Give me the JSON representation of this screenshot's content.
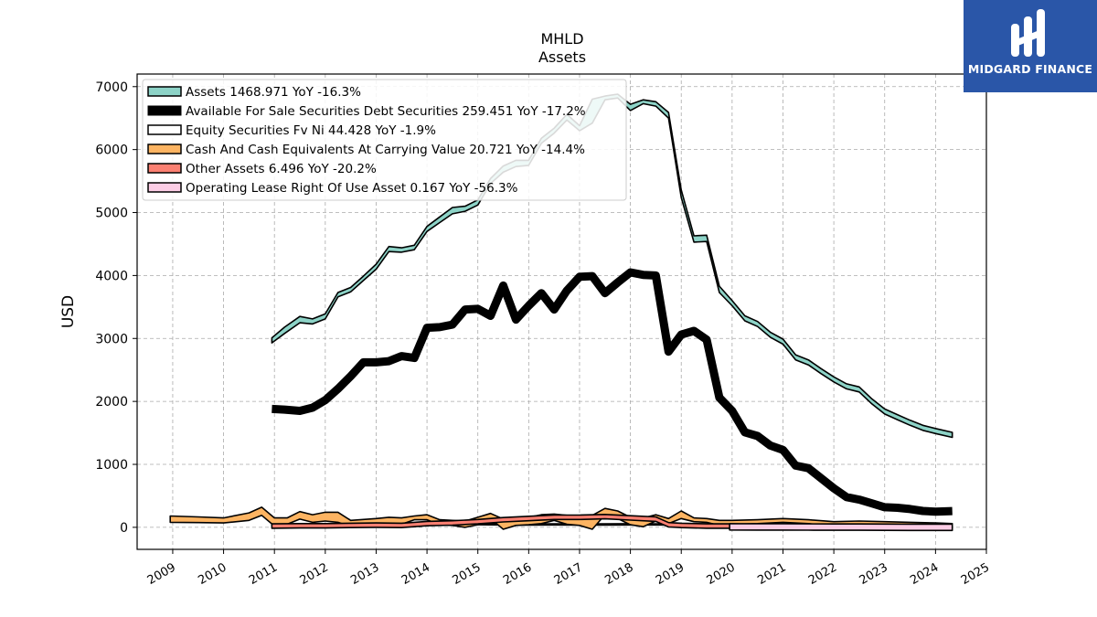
{
  "logo": {
    "text": "MIDGARD FINANCE"
  },
  "colors": {
    "assets": "#8dd3c7",
    "afs": "#000000",
    "equity": "#ffffff",
    "cash": "#fdb462",
    "other": "#fb8072",
    "lease": "#fccde5",
    "logo_bg": "#2a56a8"
  },
  "chart_data": {
    "type": "area",
    "title": "MHLD",
    "subtitle": "Assets",
    "ylabel": "USD",
    "xlabel": "",
    "xlim": [
      2008.3,
      2025.0
    ],
    "ylim": [
      -350,
      7200
    ],
    "grid": true,
    "legend_position": "top-left",
    "yticks": [
      0,
      1000,
      2000,
      3000,
      4000,
      5000,
      6000,
      7000
    ],
    "xticks": [
      2009,
      2010,
      2011,
      2012,
      2013,
      2014,
      2015,
      2016,
      2017,
      2018,
      2019,
      2020,
      2021,
      2022,
      2023,
      2024,
      2025
    ],
    "series": [
      {
        "key": "assets",
        "legend": "Assets  1468.971 YoY -16.3%",
        "style": "band",
        "x": [
          2010.95,
          2011.2,
          2011.5,
          2011.75,
          2012.0,
          2012.25,
          2012.5,
          2012.75,
          2013.0,
          2013.25,
          2013.5,
          2013.75,
          2014.0,
          2014.25,
          2014.5,
          2014.75,
          2015.0,
          2015.25,
          2015.5,
          2015.75,
          2016.0,
          2016.25,
          2016.5,
          2016.75,
          2017.0,
          2017.25,
          2017.5,
          2017.75,
          2018.0,
          2018.25,
          2018.5,
          2018.75,
          2019.0,
          2019.25,
          2019.5,
          2019.75,
          2020.0,
          2020.25,
          2020.5,
          2020.75,
          2021.0,
          2021.25,
          2021.5,
          2021.75,
          2022.0,
          2022.25,
          2022.5,
          2022.75,
          2023.0,
          2023.25,
          2023.5,
          2023.75,
          2024.0,
          2024.33
        ],
        "y": [
          2970,
          3120,
          3300,
          3270,
          3350,
          3700,
          3780,
          3960,
          4140,
          4420,
          4410,
          4450,
          4740,
          4880,
          5030,
          5060,
          5160,
          5500,
          5690,
          5780,
          5790,
          6140,
          6300,
          6520,
          6340,
          6600,
          6820,
          6860,
          6660,
          6760,
          6720,
          6540,
          5300,
          4580,
          4590,
          3780,
          3560,
          3320,
          3230,
          3060,
          2950,
          2700,
          2620,
          2480,
          2350,
          2240,
          2190,
          2000,
          1840,
          1750,
          1660,
          1580,
          1530,
          1469
        ],
        "upper": [
          3010,
          3180,
          3350,
          3310,
          3390,
          3730,
          3810,
          3990,
          4180,
          4460,
          4440,
          4480,
          4780,
          4930,
          5080,
          5100,
          5200,
          5540,
          5740,
          5830,
          5830,
          6180,
          6340,
          6560,
          6380,
          6800,
          6850,
          6880,
          6720,
          6790,
          6760,
          6590,
          5360,
          4630,
          4640,
          3830,
          3600,
          3360,
          3270,
          3100,
          2990,
          2740,
          2660,
          2520,
          2390,
          2280,
          2230,
          2040,
          1880,
          1790,
          1700,
          1620,
          1570,
          1509
        ],
        "lower": [
          2930,
          3080,
          3250,
          3230,
          3310,
          3660,
          3740,
          3920,
          4100,
          4380,
          4370,
          4410,
          4700,
          4840,
          4980,
          5020,
          5120,
          5460,
          5640,
          5730,
          5750,
          6100,
          6260,
          6470,
          6300,
          6420,
          6790,
          6820,
          6620,
          6730,
          6690,
          6500,
          5240,
          4530,
          4540,
          3730,
          3520,
          3280,
          3190,
          3020,
          2910,
          2660,
          2580,
          2440,
          2310,
          2200,
          2150,
          1960,
          1800,
          1710,
          1620,
          1540,
          1490,
          1429
        ]
      },
      {
        "key": "afs",
        "legend": "Available For Sale Securities Debt Securities  259.451 YoY -17.2%",
        "style": "thick",
        "x": [
          2010.95,
          2011.2,
          2011.5,
          2011.75,
          2012.0,
          2012.25,
          2012.5,
          2012.75,
          2013.0,
          2013.25,
          2013.5,
          2013.75,
          2014.0,
          2014.25,
          2014.5,
          2014.75,
          2015.0,
          2015.25,
          2015.5,
          2015.75,
          2016.0,
          2016.25,
          2016.5,
          2016.75,
          2017.0,
          2017.25,
          2017.5,
          2017.75,
          2018.0,
          2018.25,
          2018.5,
          2018.75,
          2019.0,
          2019.25,
          2019.5,
          2019.75,
          2020.0,
          2020.25,
          2020.5,
          2020.75,
          2021.0,
          2021.25,
          2021.5,
          2021.75,
          2022.0,
          2022.25,
          2022.5,
          2022.75,
          2023.0,
          2023.25,
          2023.5,
          2023.75,
          2024.0,
          2024.33
        ],
        "y": [
          1880,
          1870,
          1850,
          1900,
          2020,
          2200,
          2400,
          2620,
          2620,
          2640,
          2720,
          2690,
          3170,
          3180,
          3220,
          3460,
          3470,
          3360,
          3840,
          3300,
          3520,
          3720,
          3460,
          3760,
          3980,
          3990,
          3720,
          3890,
          4050,
          4010,
          4000,
          2790,
          3060,
          3120,
          2980,
          2060,
          1850,
          1510,
          1450,
          1300,
          1230,
          980,
          940,
          780,
          620,
          480,
          440,
          380,
          320,
          310,
          290,
          260,
          250,
          259
        ]
      },
      {
        "key": "equity",
        "legend": "Equity Securities Fv Ni  44.428 YoY -1.9%",
        "style": "band",
        "x": [
          2010.95,
          2011.5,
          2012.0,
          2012.5,
          2013.0,
          2013.5,
          2014.0,
          2014.5,
          2015.0,
          2015.5,
          2016.0,
          2016.5,
          2017.0,
          2017.5,
          2018.0,
          2018.5,
          2019.0,
          2019.5,
          2020.0,
          2020.5,
          2021.0,
          2021.5,
          2022.0,
          2022.5,
          2023.0,
          2023.5,
          2024.0,
          2024.33
        ],
        "y": [
          40,
          42,
          44,
          46,
          48,
          47,
          50,
          52,
          50,
          48,
          46,
          47,
          45,
          46,
          48,
          47,
          46,
          45,
          44,
          45,
          46,
          45,
          44,
          45,
          45,
          44,
          45,
          44
        ],
        "upper": [
          50,
          52,
          54,
          56,
          58,
          57,
          60,
          62,
          60,
          58,
          56,
          57,
          55,
          56,
          58,
          57,
          56,
          55,
          54,
          55,
          56,
          55,
          54,
          55,
          55,
          54,
          55,
          54
        ],
        "lower": [
          30,
          32,
          34,
          36,
          38,
          37,
          40,
          42,
          40,
          38,
          36,
          37,
          35,
          36,
          38,
          37,
          36,
          35,
          34,
          35,
          36,
          35,
          34,
          35,
          35,
          34,
          35,
          34
        ]
      },
      {
        "key": "cash",
        "legend": "Cash And Cash Equivalents At Carrying Value  20.721 YoY -14.4%",
        "style": "band",
        "x": [
          2008.95,
          2009.5,
          2010.0,
          2010.5,
          2010.75,
          2011.0,
          2011.25,
          2011.5,
          2011.75,
          2012.0,
          2012.25,
          2012.5,
          2013.0,
          2013.25,
          2013.5,
          2013.75,
          2014.0,
          2014.25,
          2014.5,
          2014.75,
          2015.0,
          2015.25,
          2015.5,
          2015.75,
          2016.0,
          2016.25,
          2016.5,
          2016.75,
          2017.0,
          2017.25,
          2017.5,
          2017.75,
          2018.0,
          2018.25,
          2018.5,
          2018.75,
          2019.0,
          2019.25,
          2019.5,
          2019.75,
          2020.0,
          2020.5,
          2021.0,
          2021.5,
          2022.0,
          2022.5,
          2023.0,
          2023.5,
          2024.0,
          2024.33
        ],
        "y": [
          130,
          120,
          110,
          170,
          250,
          80,
          100,
          190,
          140,
          170,
          160,
          60,
          80,
          110,
          100,
          150,
          160,
          80,
          70,
          50,
          100,
          180,
          50,
          90,
          100,
          130,
          160,
          120,
          110,
          80,
          250,
          200,
          100,
          80,
          150,
          100,
          200,
          120,
          110,
          70,
          80,
          90,
          110,
          90,
          50,
          60,
          50,
          40,
          30,
          21
        ],
        "upper": [
          180,
          165,
          150,
          230,
          320,
          150,
          150,
          250,
          200,
          240,
          240,
          110,
          140,
          160,
          150,
          180,
          200,
          120,
          110,
          100,
          160,
          220,
          130,
          150,
          160,
          200,
          210,
          190,
          190,
          190,
          300,
          260,
          160,
          150,
          200,
          140,
          260,
          150,
          140,
          110,
          110,
          120,
          140,
          120,
          90,
          100,
          90,
          80,
          70,
          60
        ],
        "lower": [
          80,
          75,
          70,
          110,
          190,
          20,
          50,
          130,
          80,
          100,
          80,
          10,
          20,
          60,
          50,
          120,
          120,
          40,
          30,
          0,
          40,
          140,
          -30,
          30,
          40,
          60,
          110,
          50,
          30,
          -30,
          200,
          140,
          40,
          10,
          100,
          60,
          140,
          90,
          80,
          30,
          50,
          60,
          80,
          60,
          10,
          20,
          10,
          0,
          -10,
          -18
        ]
      },
      {
        "key": "other",
        "legend": "Other Assets  6.496 YoY -20.2%",
        "style": "band",
        "x": [
          2010.95,
          2011.5,
          2012.0,
          2012.5,
          2013.0,
          2013.5,
          2014.0,
          2014.5,
          2015.0,
          2015.5,
          2016.0,
          2016.5,
          2017.0,
          2017.5,
          2018.0,
          2018.5,
          2018.75,
          2019.0,
          2019.5,
          2020.0,
          2020.5,
          2021.0,
          2021.5,
          2022.0,
          2022.5,
          2023.0,
          2023.5,
          2024.0,
          2024.33
        ],
        "y": [
          20,
          25,
          25,
          30,
          35,
          30,
          60,
          70,
          90,
          120,
          140,
          160,
          160,
          170,
          150,
          130,
          40,
          30,
          20,
          20,
          15,
          15,
          12,
          10,
          10,
          8,
          8,
          7,
          6.5
        ],
        "upper": [
          55,
          60,
          60,
          65,
          70,
          65,
          95,
          105,
          125,
          155,
          175,
          195,
          195,
          205,
          185,
          165,
          75,
          65,
          55,
          55,
          50,
          50,
          47,
          45,
          45,
          43,
          43,
          42,
          41
        ],
        "lower": [
          -15,
          -10,
          -10,
          -5,
          0,
          -5,
          25,
          35,
          55,
          85,
          105,
          125,
          125,
          135,
          115,
          95,
          5,
          -5,
          -15,
          -15,
          -20,
          -20,
          -23,
          -25,
          -25,
          -27,
          -27,
          -28,
          -28
        ]
      },
      {
        "key": "lease",
        "legend": "Operating Lease Right Of Use Asset  0.167 YoY -56.3%",
        "style": "band",
        "x": [
          2019.95,
          2020.5,
          2021.0,
          2021.5,
          2022.0,
          2022.5,
          2023.0,
          2023.5,
          2024.0,
          2024.33
        ],
        "y": [
          8,
          7,
          6,
          5,
          4,
          3,
          2,
          1,
          0.4,
          0.167
        ],
        "upper": [
          58,
          57,
          56,
          55,
          54,
          53,
          52,
          51,
          50,
          50
        ],
        "lower": [
          -42,
          -43,
          -44,
          -45,
          -46,
          -47,
          -48,
          -49,
          -50,
          -50
        ]
      }
    ]
  }
}
